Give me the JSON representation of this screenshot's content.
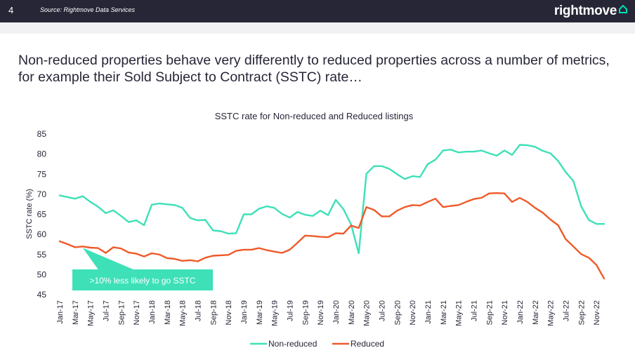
{
  "header": {
    "page_number": "4",
    "source": "Source: Rightmove Data Services",
    "brand": "rightmove",
    "colors": {
      "bar": "#262637",
      "brand_accent": "#00deb6"
    }
  },
  "headline": "Non-reduced properties behave very differently to reduced properties across a number of metrics, for example their Sold Subject to Contract (SSTC) rate…",
  "chart_data": {
    "type": "line",
    "title": "SSTC rate for Non-reduced and Reduced listings",
    "xlabel": "",
    "ylabel": "SSTC rate (%)",
    "ylim": [
      45,
      85
    ],
    "yticks": [
      45,
      50,
      55,
      60,
      65,
      70,
      75,
      80,
      85
    ],
    "grid": false,
    "legend_position": "bottom-center",
    "x": [
      "Jan-17",
      "Feb-17",
      "Mar-17",
      "Apr-17",
      "May-17",
      "Jun-17",
      "Jul-17",
      "Aug-17",
      "Sep-17",
      "Oct-17",
      "Nov-17",
      "Dec-17",
      "Jan-18",
      "Feb-18",
      "Mar-18",
      "Apr-18",
      "May-18",
      "Jun-18",
      "Jul-18",
      "Aug-18",
      "Sep-18",
      "Oct-18",
      "Nov-18",
      "Dec-18",
      "Jan-19",
      "Feb-19",
      "Mar-19",
      "Apr-19",
      "May-19",
      "Jun-19",
      "Jul-19",
      "Aug-19",
      "Sep-19",
      "Oct-19",
      "Nov-19",
      "Dec-19",
      "Jan-20",
      "Feb-20",
      "Mar-20",
      "Apr-20",
      "May-20",
      "Jun-20",
      "Jul-20",
      "Aug-20",
      "Sep-20",
      "Oct-20",
      "Nov-20",
      "Dec-20",
      "Jan-21",
      "Feb-21",
      "Mar-21",
      "Apr-21",
      "May-21",
      "Jun-21",
      "Jul-21",
      "Aug-21",
      "Sep-21",
      "Oct-21",
      "Nov-21",
      "Dec-21",
      "Jan-22",
      "Feb-22",
      "Mar-22",
      "Apr-22",
      "May-22",
      "Jun-22",
      "Jul-22",
      "Aug-22",
      "Sep-22",
      "Oct-22",
      "Nov-22",
      "Dec-22"
    ],
    "x_tick_labels": [
      "Jan-17",
      "Mar-17",
      "May-17",
      "Jul-17",
      "Sep-17",
      "Nov-17",
      "Jan-18",
      "Mar-18",
      "May-18",
      "Jul-18",
      "Sep-18",
      "Nov-18",
      "Jan-19",
      "Mar-19",
      "May-19",
      "Jul-19",
      "Sep-19",
      "Nov-19",
      "Jan-20",
      "Mar-20",
      "May-20",
      "Jul-20",
      "Sep-20",
      "Nov-20",
      "Jan-21",
      "Mar-21",
      "May-21",
      "Jul-21",
      "Sep-21",
      "Nov-21",
      "Jan-22",
      "Mar-22",
      "May-22",
      "Jul-22",
      "Sep-22",
      "Nov-22"
    ],
    "series": [
      {
        "name": "Non-reduced",
        "color": "#3ee0b8",
        "values": [
          69.7,
          69.3,
          68.9,
          69.5,
          68.1,
          66.9,
          65.3,
          66.0,
          64.6,
          63.1,
          63.5,
          62.3,
          67.4,
          67.7,
          67.5,
          67.3,
          66.6,
          64.1,
          63.5,
          63.6,
          61.0,
          60.8,
          60.2,
          60.3,
          65.0,
          65.0,
          66.4,
          67.0,
          66.6,
          65.1,
          64.2,
          65.6,
          64.9,
          64.6,
          65.9,
          64.8,
          68.6,
          66.3,
          62.5,
          55.3,
          75.1,
          77.0,
          77.0,
          76.3,
          75.0,
          73.8,
          74.5,
          74.3,
          77.5,
          78.6,
          80.9,
          81.1,
          80.4,
          80.6,
          80.6,
          80.9,
          80.2,
          79.6,
          80.9,
          79.8,
          82.3,
          82.2,
          81.8,
          80.8,
          80.2,
          78.3,
          75.5,
          73.3,
          67.0,
          63.6,
          62.6,
          62.6
        ]
      },
      {
        "name": "Reduced",
        "color": "#ef5a28",
        "values": [
          58.3,
          57.6,
          56.8,
          57.0,
          56.7,
          56.6,
          55.4,
          56.8,
          56.5,
          55.5,
          55.2,
          54.5,
          55.3,
          55.0,
          54.1,
          53.9,
          53.4,
          53.6,
          53.3,
          54.2,
          54.7,
          54.8,
          54.9,
          55.9,
          56.2,
          56.2,
          56.6,
          56.1,
          55.7,
          55.4,
          56.2,
          57.9,
          59.7,
          59.6,
          59.4,
          59.3,
          60.3,
          60.2,
          62.2,
          61.6,
          66.8,
          66.1,
          64.5,
          64.5,
          65.9,
          66.8,
          67.3,
          67.2,
          68.1,
          68.9,
          66.8,
          67.1,
          67.3,
          68.1,
          68.8,
          69.1,
          70.2,
          70.3,
          70.2,
          68.1,
          69.1,
          68.1,
          66.6,
          65.4,
          63.7,
          62.3,
          58.8,
          57.0,
          55.1,
          54.2,
          52.4,
          49.0
        ]
      }
    ],
    "annotation": {
      "text": ">10% less likely to go SSTC",
      "points_to_x": "Apr-17",
      "fill": "#3ee0b8",
      "text_color": "#ffffff"
    }
  }
}
